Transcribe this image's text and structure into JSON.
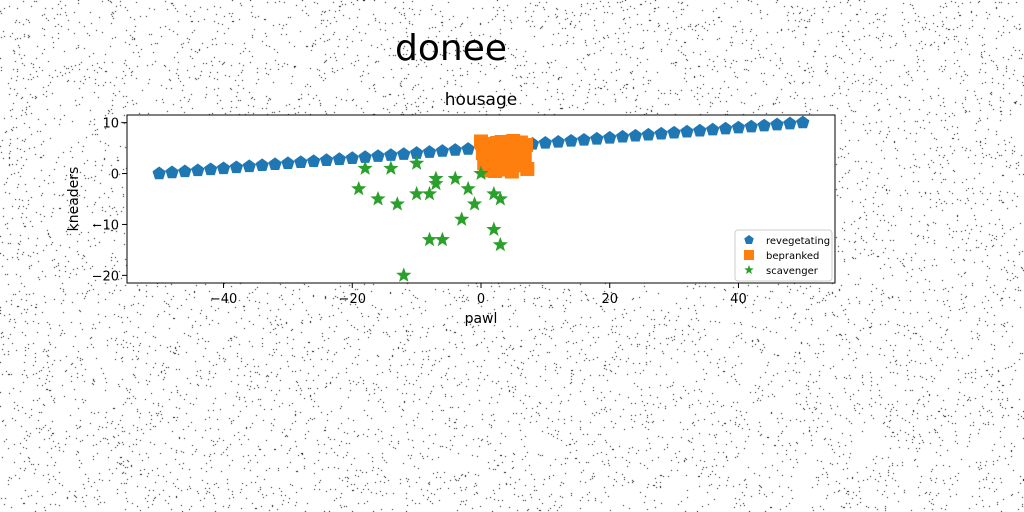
{
  "figure": {
    "suptitle": "donee"
  },
  "chart_data": {
    "type": "scatter",
    "title": "housage",
    "xlabel": "pawl",
    "ylabel": "kneaders",
    "xlim": [
      -55,
      55
    ],
    "ylim": [
      -21.5,
      11.5
    ],
    "xticks": [
      -40,
      -20,
      0,
      20,
      40
    ],
    "xtick_labels": [
      "−40",
      "−20",
      "0",
      "20",
      "40"
    ],
    "yticks": [
      10,
      0,
      -10,
      -20
    ],
    "ytick_labels": [
      "10",
      "0",
      "−10",
      "−20"
    ],
    "grid": false,
    "legend_position": "lower-right",
    "series": [
      {
        "name": "revegetating",
        "marker": "pentagon",
        "color": "#1f77b4",
        "points": [
          [
            -50,
            0.0
          ],
          [
            -48,
            0.2
          ],
          [
            -46,
            0.4
          ],
          [
            -44,
            0.6
          ],
          [
            -42,
            0.8
          ],
          [
            -40,
            1.0
          ],
          [
            -38,
            1.2
          ],
          [
            -36,
            1.4
          ],
          [
            -34,
            1.6
          ],
          [
            -32,
            1.8
          ],
          [
            -30,
            2.0
          ],
          [
            -28,
            2.2
          ],
          [
            -26,
            2.4
          ],
          [
            -24,
            2.6
          ],
          [
            -22,
            2.8
          ],
          [
            -20,
            3.0
          ],
          [
            -18,
            3.2
          ],
          [
            -16,
            3.4
          ],
          [
            -14,
            3.6
          ],
          [
            -12,
            3.8
          ],
          [
            -10,
            4.0
          ],
          [
            -8,
            4.2
          ],
          [
            -6,
            4.4
          ],
          [
            -4,
            4.6
          ],
          [
            -2,
            4.8
          ],
          [
            0,
            5.0
          ],
          [
            2,
            5.2
          ],
          [
            4,
            5.4
          ],
          [
            6,
            5.6
          ],
          [
            8,
            5.8
          ],
          [
            10,
            6.0
          ],
          [
            12,
            6.2
          ],
          [
            14,
            6.4
          ],
          [
            16,
            6.6
          ],
          [
            18,
            6.8
          ],
          [
            20,
            7.0
          ],
          [
            22,
            7.2
          ],
          [
            24,
            7.4
          ],
          [
            26,
            7.6
          ],
          [
            28,
            7.8
          ],
          [
            30,
            8.0
          ],
          [
            32,
            8.2
          ],
          [
            34,
            8.4
          ],
          [
            36,
            8.6
          ],
          [
            38,
            8.8
          ],
          [
            40,
            9.0
          ],
          [
            42,
            9.2
          ],
          [
            44,
            9.4
          ],
          [
            46,
            9.6
          ],
          [
            48,
            9.8
          ],
          [
            50,
            10.0
          ]
        ]
      },
      {
        "name": "bepranked",
        "marker": "square",
        "color": "#ff7f0e",
        "points": [
          [
            0.0,
            6.3
          ],
          [
            0.5,
            2.0
          ],
          [
            1.0,
            5.8
          ],
          [
            1.5,
            1.2
          ],
          [
            2.0,
            4.2
          ],
          [
            2.5,
            6.0
          ],
          [
            3.0,
            2.8
          ],
          [
            3.5,
            0.8
          ],
          [
            4.0,
            5.2
          ],
          [
            4.5,
            3.1
          ],
          [
            5.0,
            6.4
          ],
          [
            5.5,
            1.6
          ],
          [
            6.0,
            4.5
          ],
          [
            6.5,
            2.4
          ],
          [
            7.0,
            5.6
          ],
          [
            7.2,
            0.9
          ],
          [
            0.3,
            4.0
          ],
          [
            1.2,
            3.0
          ],
          [
            2.2,
            0.5
          ],
          [
            3.2,
            6.2
          ],
          [
            4.2,
            1.1
          ],
          [
            5.2,
            3.9
          ],
          [
            6.2,
            6.1
          ],
          [
            6.8,
            3.3
          ],
          [
            0.8,
            0.6
          ],
          [
            1.8,
            2.2
          ],
          [
            2.8,
            4.9
          ],
          [
            3.8,
            3.6
          ],
          [
            4.8,
            0.4
          ],
          [
            5.8,
            5.0
          ]
        ]
      },
      {
        "name": "scavenger",
        "marker": "star",
        "color": "#2ca02c",
        "points": [
          [
            -18,
            1
          ],
          [
            -14,
            1
          ],
          [
            -10,
            2
          ],
          [
            -19,
            -3
          ],
          [
            -16,
            -5
          ],
          [
            -13,
            -6
          ],
          [
            -10,
            -4
          ],
          [
            -8,
            -4
          ],
          [
            -7,
            -1
          ],
          [
            -7,
            -2
          ],
          [
            -4,
            -1
          ],
          [
            -2,
            -3
          ],
          [
            0,
            0
          ],
          [
            -1,
            -6
          ],
          [
            -3,
            -9
          ],
          [
            2,
            -4
          ],
          [
            3,
            -5
          ],
          [
            -8,
            -13
          ],
          [
            -6,
            -13
          ],
          [
            2,
            -11
          ],
          [
            3,
            -14
          ],
          [
            -12,
            -20
          ]
        ]
      }
    ]
  },
  "colors": {
    "background": "#ffffff",
    "axes_edge": "#000000",
    "noise": "#000000"
  }
}
